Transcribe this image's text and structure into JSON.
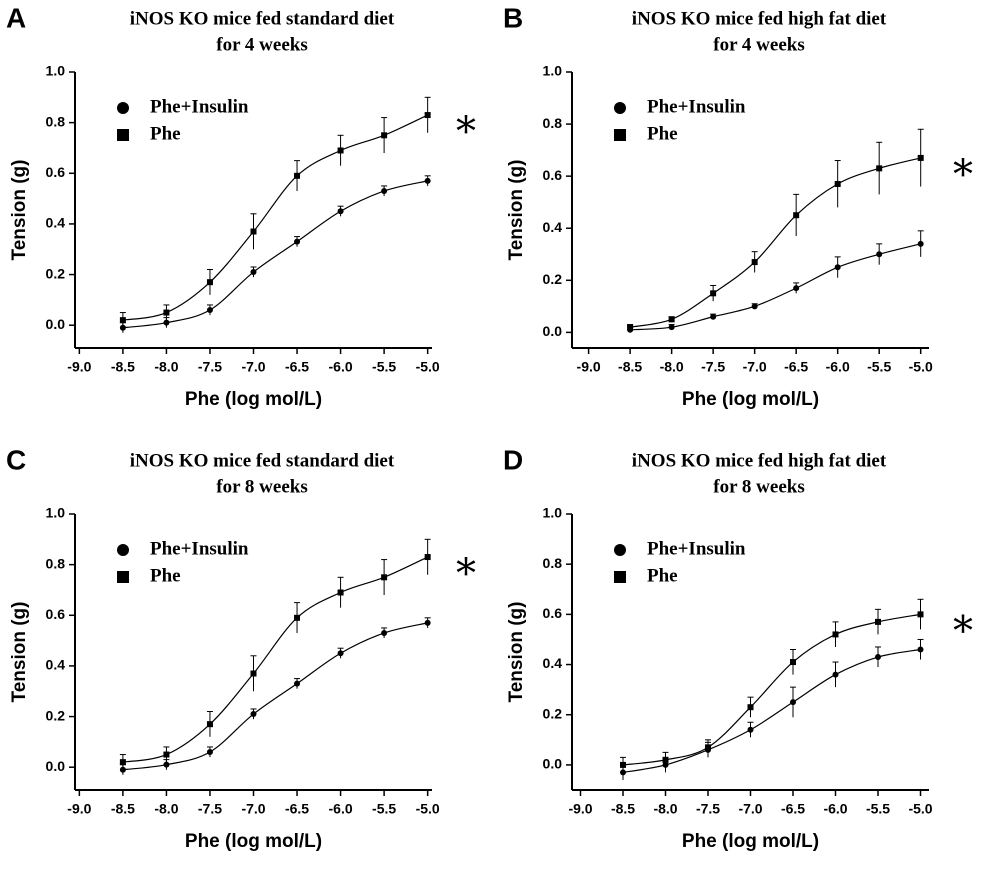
{
  "chart_data": [
    {
      "type": "line",
      "panel": "A",
      "title": [
        "iNOS KO mice fed standard diet",
        "for 4 weeks"
      ],
      "x_label": "Phe (log mol/L)",
      "y_label": "Tension (g)",
      "annotation": "*",
      "legend": "upper left",
      "x": [
        -8.5,
        -8.0,
        -7.5,
        -7.0,
        -6.5,
        -6.0,
        -5.5,
        -5.0
      ],
      "series": [
        {
          "name": "Phe+Insulin",
          "marker": "circle",
          "color": "#000000",
          "values": [
            -0.01,
            0.01,
            0.06,
            0.21,
            0.33,
            0.45,
            0.53,
            0.57
          ],
          "errors": [
            0.02,
            0.02,
            0.02,
            0.02,
            0.02,
            0.02,
            0.02,
            0.02
          ]
        },
        {
          "name": "Phe",
          "marker": "square",
          "color": "#000000",
          "values": [
            0.02,
            0.05,
            0.17,
            0.37,
            0.59,
            0.69,
            0.75,
            0.83
          ],
          "errors": [
            0.03,
            0.03,
            0.05,
            0.07,
            0.06,
            0.06,
            0.07,
            0.07
          ]
        }
      ],
      "xlim": [
        -9.05,
        -4.95
      ],
      "ylim": [
        -0.09,
        1.0
      ],
      "xticks": [
        {
          "value": -9,
          "label": "-9.0"
        },
        -8.5,
        {
          "value": -8,
          "label": "-8.0"
        },
        -7.5,
        {
          "value": -7,
          "label": "-7.0"
        },
        -6.5,
        {
          "value": -6,
          "label": "-6.0"
        },
        -5.5,
        {
          "value": -5,
          "label": "-5.0"
        }
      ],
      "yticks": [
        {
          "value": 0,
          "label": "0.0"
        },
        0.2,
        0.4,
        0.6,
        0.8,
        {
          "value": 1,
          "label": "1.0"
        }
      ]
    },
    {
      "type": "line",
      "panel": "B",
      "title": [
        "iNOS KO mice fed high fat diet",
        "for 4 weeks"
      ],
      "x_label": "Phe (log mol/L)",
      "y_label": "Tension (g)",
      "annotation": "*",
      "legend": "upper left",
      "x": [
        -8.5,
        -8.0,
        -7.5,
        -7.0,
        -6.5,
        -6.0,
        -5.5,
        -5.0
      ],
      "series": [
        {
          "name": "Phe+Insulin",
          "marker": "circle",
          "color": "#000000",
          "values": [
            0.01,
            0.02,
            0.06,
            0.1,
            0.17,
            0.25,
            0.3,
            0.34
          ],
          "errors": [
            0.01,
            0.01,
            0.01,
            0.01,
            0.02,
            0.04,
            0.04,
            0.05
          ]
        },
        {
          "name": "Phe",
          "marker": "square",
          "color": "#000000",
          "values": [
            0.02,
            0.05,
            0.15,
            0.27,
            0.45,
            0.57,
            0.63,
            0.67
          ],
          "errors": [
            0.01,
            0.01,
            0.03,
            0.04,
            0.08,
            0.09,
            0.1,
            0.11
          ]
        }
      ],
      "xlim": [
        -9.2,
        -4.9
      ],
      "ylim": [
        -0.06,
        1.0
      ],
      "xticks": [
        {
          "value": -9,
          "label": "-9.0"
        },
        -8.5,
        {
          "value": -8,
          "label": "-8.0"
        },
        -7.5,
        {
          "value": -7,
          "label": "-7.0"
        },
        -6.5,
        {
          "value": -6,
          "label": "-6.0"
        },
        -5.5,
        {
          "value": -5,
          "label": "-5.0"
        }
      ],
      "yticks": [
        {
          "value": 0,
          "label": "0.0"
        },
        0.2,
        0.4,
        0.6,
        0.8,
        {
          "value": 1,
          "label": "1.0"
        }
      ]
    },
    {
      "type": "line",
      "panel": "C",
      "title": [
        "iNOS KO mice fed standard diet",
        "for 8 weeks"
      ],
      "x_label": "Phe (log mol/L)",
      "y_label": "Tension (g)",
      "annotation": "*",
      "legend": "upper left",
      "x": [
        -8.5,
        -8.0,
        -7.5,
        -7.0,
        -6.5,
        -6.0,
        -5.5,
        -5.0
      ],
      "series": [
        {
          "name": "Phe+Insulin",
          "marker": "circle",
          "color": "#000000",
          "values": [
            -0.01,
            0.01,
            0.06,
            0.21,
            0.33,
            0.45,
            0.53,
            0.57
          ],
          "errors": [
            0.02,
            0.02,
            0.02,
            0.02,
            0.02,
            0.02,
            0.02,
            0.02
          ]
        },
        {
          "name": "Phe",
          "marker": "square",
          "color": "#000000",
          "values": [
            0.02,
            0.05,
            0.17,
            0.37,
            0.59,
            0.69,
            0.75,
            0.83
          ],
          "errors": [
            0.03,
            0.03,
            0.05,
            0.07,
            0.06,
            0.06,
            0.07,
            0.07
          ]
        }
      ],
      "xlim": [
        -9.05,
        -4.95
      ],
      "ylim": [
        -0.09,
        1.0
      ],
      "xticks": [
        {
          "value": -9,
          "label": "-9.0"
        },
        -8.5,
        {
          "value": -8,
          "label": "-8.0"
        },
        -7.5,
        {
          "value": -7,
          "label": "-7.0"
        },
        -6.5,
        {
          "value": -6,
          "label": "-6.0"
        },
        -5.5,
        {
          "value": -5,
          "label": "-5.0"
        }
      ],
      "yticks": [
        {
          "value": 0,
          "label": "0.0"
        },
        0.2,
        0.4,
        0.6,
        0.8,
        {
          "value": 1,
          "label": "1.0"
        }
      ]
    },
    {
      "type": "line",
      "panel": "D",
      "title": [
        "iNOS KO mice fed high fat diet",
        "for 8 weeks"
      ],
      "x_label": "Phe (log mol/L)",
      "y_label": "Tension (g)",
      "annotation": "*",
      "legend": "upper left",
      "x": [
        -8.5,
        -8.0,
        -7.5,
        -7.0,
        -6.5,
        -6.0,
        -5.5,
        -5.0
      ],
      "series": [
        {
          "name": "Phe+Insulin",
          "marker": "circle",
          "color": "#000000",
          "values": [
            -0.03,
            0.0,
            0.06,
            0.14,
            0.25,
            0.36,
            0.43,
            0.46
          ],
          "errors": [
            0.03,
            0.03,
            0.03,
            0.03,
            0.06,
            0.05,
            0.04,
            0.04
          ]
        },
        {
          "name": "Phe",
          "marker": "square",
          "color": "#000000",
          "values": [
            0.0,
            0.02,
            0.07,
            0.23,
            0.41,
            0.52,
            0.57,
            0.6
          ],
          "errors": [
            0.03,
            0.03,
            0.03,
            0.04,
            0.05,
            0.05,
            0.05,
            0.06
          ]
        }
      ],
      "xlim": [
        -9.1,
        -4.9
      ],
      "ylim": [
        -0.1,
        1.0
      ],
      "xticks": [
        {
          "value": -9,
          "label": "-9.0"
        },
        -8.5,
        {
          "value": -8,
          "label": "-8.0"
        },
        -7.5,
        {
          "value": -7,
          "label": "-7.0"
        },
        -6.5,
        {
          "value": -6,
          "label": "-6.0"
        },
        -5.5,
        {
          "value": -5,
          "label": "-5.0"
        }
      ],
      "yticks": [
        {
          "value": 0,
          "label": "0.0"
        },
        0.2,
        0.4,
        0.6,
        0.8,
        {
          "value": 1,
          "label": "1.0"
        }
      ]
    }
  ]
}
